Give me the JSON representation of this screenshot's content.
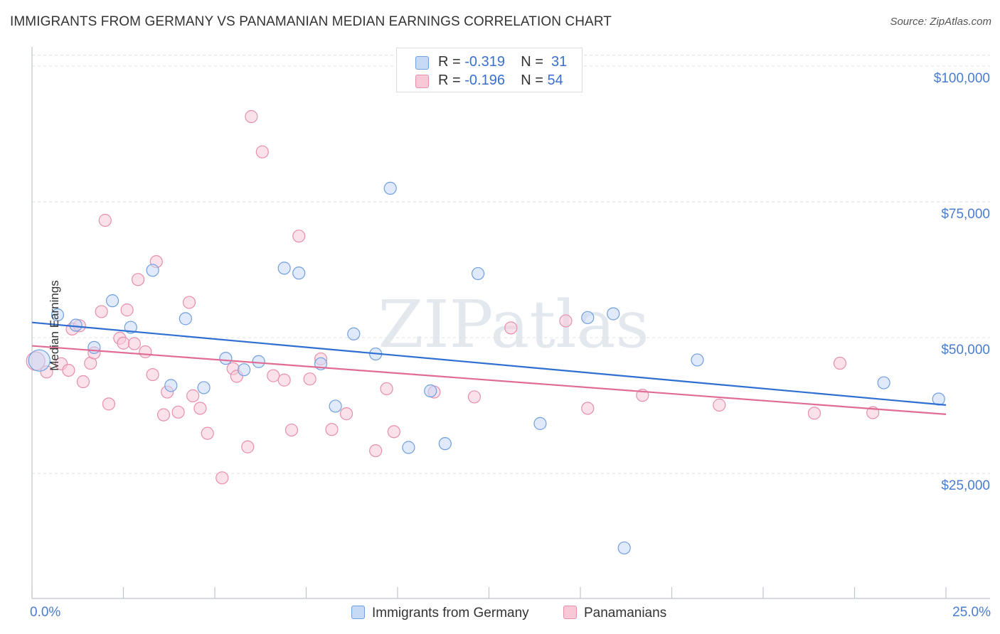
{
  "title": "IMMIGRANTS FROM GERMANY VS PANAMANIAN MEDIAN EARNINGS CORRELATION CHART",
  "source": "Source: ZipAtlas.com",
  "watermark": "ZIPatlas",
  "legend_top": {
    "rows": [
      {
        "r_label": "R = ",
        "r_value": "-0.319",
        "n_label": "N = ",
        "n_value": "31"
      },
      {
        "r_label": "R = ",
        "r_value": "-0.196",
        "n_label": "N = ",
        "n_value": "54"
      }
    ]
  },
  "chart_data": {
    "type": "scatter",
    "xlabel": "",
    "ylabel": "Median Earnings",
    "xlim": [
      0,
      25
    ],
    "ylim": [
      2000,
      103000
    ],
    "x_tick_labels": [
      "0.0%",
      "25.0%"
    ],
    "y_ticks": [
      25000,
      50000,
      75000,
      100000
    ],
    "y_tick_labels": [
      "$25,000",
      "$50,000",
      "$75,000",
      "$100,000"
    ],
    "grid": "horizontal-dashed",
    "legend_placement": "top-center",
    "series": [
      {
        "name": "Immigrants from Germany",
        "color": "#6f9fe0",
        "fill": "#c6d9f5",
        "trend": {
          "x": [
            0,
            25
          ],
          "y": [
            52800,
            37600
          ],
          "color": "#2f6fd1"
        },
        "points": [
          [
            0.2,
            45800
          ],
          [
            0.7,
            54200
          ],
          [
            1.2,
            52300
          ],
          [
            1.7,
            48200
          ],
          [
            2.2,
            56800
          ],
          [
            2.7,
            51900
          ],
          [
            3.3,
            62400
          ],
          [
            3.8,
            41200
          ],
          [
            4.2,
            53500
          ],
          [
            4.7,
            40800
          ],
          [
            5.3,
            46200
          ],
          [
            5.8,
            44100
          ],
          [
            6.2,
            45600
          ],
          [
            6.9,
            62800
          ],
          [
            7.3,
            61900
          ],
          [
            7.9,
            45200
          ],
          [
            8.3,
            37400
          ],
          [
            8.8,
            50700
          ],
          [
            9.4,
            47000
          ],
          [
            9.8,
            77500
          ],
          [
            10.3,
            29800
          ],
          [
            10.9,
            40200
          ],
          [
            11.3,
            30500
          ],
          [
            12.2,
            61800
          ],
          [
            13.9,
            34200
          ],
          [
            15.2,
            53700
          ],
          [
            15.9,
            54400
          ],
          [
            16.2,
            11300
          ],
          [
            18.2,
            45900
          ],
          [
            23.3,
            41700
          ],
          [
            24.8,
            38700
          ]
        ]
      },
      {
        "name": "Panamanians",
        "color": "#e78fac",
        "fill": "#f8c8d7",
        "trend": {
          "x": [
            0,
            25
          ],
          "y": [
            48500,
            35900
          ],
          "color": "#e06c96"
        },
        "points": [
          [
            0.1,
            45700
          ],
          [
            0.4,
            43700
          ],
          [
            0.8,
            45200
          ],
          [
            1.0,
            44000
          ],
          [
            1.1,
            51600
          ],
          [
            1.3,
            52200
          ],
          [
            1.4,
            41900
          ],
          [
            1.6,
            45300
          ],
          [
            1.7,
            47200
          ],
          [
            1.9,
            54800
          ],
          [
            2.0,
            71600
          ],
          [
            2.1,
            37800
          ],
          [
            2.4,
            49900
          ],
          [
            2.5,
            49000
          ],
          [
            2.6,
            55100
          ],
          [
            2.8,
            48900
          ],
          [
            2.9,
            60700
          ],
          [
            3.1,
            47400
          ],
          [
            3.3,
            43200
          ],
          [
            3.4,
            64000
          ],
          [
            3.6,
            35800
          ],
          [
            3.7,
            40000
          ],
          [
            4.0,
            36300
          ],
          [
            4.3,
            56500
          ],
          [
            4.4,
            39300
          ],
          [
            4.6,
            37000
          ],
          [
            4.8,
            32400
          ],
          [
            5.2,
            24200
          ],
          [
            5.5,
            44300
          ],
          [
            5.6,
            42900
          ],
          [
            5.9,
            29900
          ],
          [
            6.0,
            90700
          ],
          [
            6.3,
            84200
          ],
          [
            6.6,
            43000
          ],
          [
            6.9,
            42200
          ],
          [
            7.1,
            33000
          ],
          [
            7.3,
            68700
          ],
          [
            7.6,
            42400
          ],
          [
            7.9,
            46100
          ],
          [
            8.2,
            33100
          ],
          [
            8.6,
            36000
          ],
          [
            9.4,
            29200
          ],
          [
            9.7,
            40600
          ],
          [
            9.9,
            32700
          ],
          [
            11.0,
            40000
          ],
          [
            12.1,
            39100
          ],
          [
            13.1,
            51800
          ],
          [
            14.6,
            53100
          ],
          [
            15.2,
            37000
          ],
          [
            16.7,
            39400
          ],
          [
            18.8,
            37600
          ],
          [
            21.4,
            36100
          ],
          [
            22.1,
            45300
          ],
          [
            23.0,
            36200
          ]
        ]
      }
    ]
  }
}
